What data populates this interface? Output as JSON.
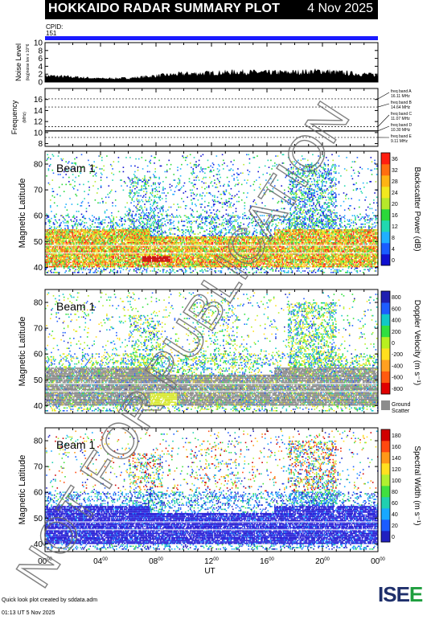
{
  "header": {
    "title": "HOKKAIDO RADAR SUMMARY PLOT",
    "date": "4 Nov 2025"
  },
  "cpid": {
    "label": "CPID:",
    "value": "151"
  },
  "colors": {
    "cpid_bar": "#1a1aff",
    "ground_scatter": "#8c8c8c",
    "header_bg": "#000000"
  },
  "watermark": "NOT FOR PUBLICATION",
  "footer": {
    "credit": "Quick look plot created by sddata.adm",
    "created": "01:13 UT  5 Nov 2025"
  },
  "logo": {
    "text_a": "IS",
    "text_b": "E",
    "text_c": "E"
  },
  "chart_data": [
    {
      "type": "area",
      "panel": "noise",
      "ylabel": "Noise Level",
      "ylabel_sub": "(log)noise lev x 10^6",
      "ylim": [
        0,
        10
      ],
      "yticks": [
        0,
        2,
        4,
        6,
        8,
        10
      ],
      "ytick_labels": [
        "0",
        "2",
        "4",
        "6",
        "8",
        "10"
      ],
      "x_hours": [
        0,
        2,
        4,
        6,
        8,
        10,
        12,
        14,
        16,
        18,
        20,
        22,
        24
      ],
      "values": [
        1.6,
        1.3,
        0.9,
        1.0,
        1.6,
        2.1,
        2.3,
        2.6,
        2.4,
        2.5,
        2.8,
        2.2,
        1.8
      ]
    },
    {
      "type": "line",
      "panel": "frequency",
      "ylabel": "Frequency",
      "ylabel_sub": "(MHz)",
      "ylim": [
        7.5,
        18
      ],
      "yticks": [
        8,
        10,
        12,
        14,
        16
      ],
      "ytick_labels": [
        "8",
        "10",
        "12",
        "14",
        "16"
      ],
      "frequency_mhz": 10.3,
      "bands": [
        {
          "label": "freq band A",
          "value_label": "16.11 MHz",
          "mhz": 16.11
        },
        {
          "label": "freq band B",
          "value_label": "14.64 MHz",
          "mhz": 14.64
        },
        {
          "label": "freq band C",
          "value_label": "11.07 MHz",
          "mhz": 11.07
        },
        {
          "label": "freq band D",
          "value_label": "10.30 MHz",
          "mhz": 10.3
        },
        {
          "label": "freq band E",
          "value_label": "9.11 MHz",
          "mhz": 9.11
        }
      ]
    },
    {
      "type": "heatmap",
      "panel": "power",
      "beam": "Beam 1",
      "ylabel": "Magnetic Latitude",
      "ylim": [
        37,
        85
      ],
      "yticks": [
        40,
        50,
        60,
        70,
        80
      ],
      "ytick_labels": [
        "40",
        "50",
        "60",
        "70",
        "80"
      ],
      "colorbar_label": "Backscatter Power (dB)",
      "colorbar_ticks": [
        "0",
        "4",
        "8",
        "12",
        "16",
        "20",
        "24",
        "28",
        "32",
        "36"
      ],
      "colorbar_range": [
        0,
        36
      ],
      "scale": "power"
    },
    {
      "type": "heatmap",
      "panel": "velocity",
      "beam": "Beam 1",
      "ylabel": "Magnetic Latitude",
      "ylim": [
        37,
        85
      ],
      "yticks": [
        40,
        50,
        60,
        70,
        80
      ],
      "ytick_labels": [
        "40",
        "50",
        "60",
        "70",
        "80"
      ],
      "colorbar_label": "Doppler Velocity (m s⁻¹)",
      "colorbar_ticks": [
        "-800",
        "-600",
        "-400",
        "-200",
        "0",
        "200",
        "400",
        "600",
        "800"
      ],
      "colorbar_range": [
        -800,
        800
      ],
      "ground_scatter_label": [
        "Ground",
        "Scatter"
      ],
      "scale": "velocity"
    },
    {
      "type": "heatmap",
      "panel": "width",
      "beam": "Beam 1",
      "ylabel": "Magnetic Latitude",
      "ylim": [
        37,
        85
      ],
      "yticks": [
        40,
        50,
        60,
        70,
        80
      ],
      "ytick_labels": [
        "40",
        "50",
        "60",
        "70",
        "80"
      ],
      "colorbar_label": "Spectral Width (m s⁻¹)",
      "colorbar_ticks": [
        "0",
        "20",
        "40",
        "60",
        "80",
        "100",
        "120",
        "140",
        "160",
        "180"
      ],
      "colorbar_range": [
        0,
        180
      ],
      "scale": "width"
    }
  ],
  "xaxis": {
    "label": "UT",
    "hours": [
      0,
      4,
      8,
      12,
      16,
      20,
      24
    ],
    "tick_labels": [
      "00",
      "04",
      "08",
      "12",
      "16",
      "20",
      "00"
    ],
    "sup": "00"
  }
}
